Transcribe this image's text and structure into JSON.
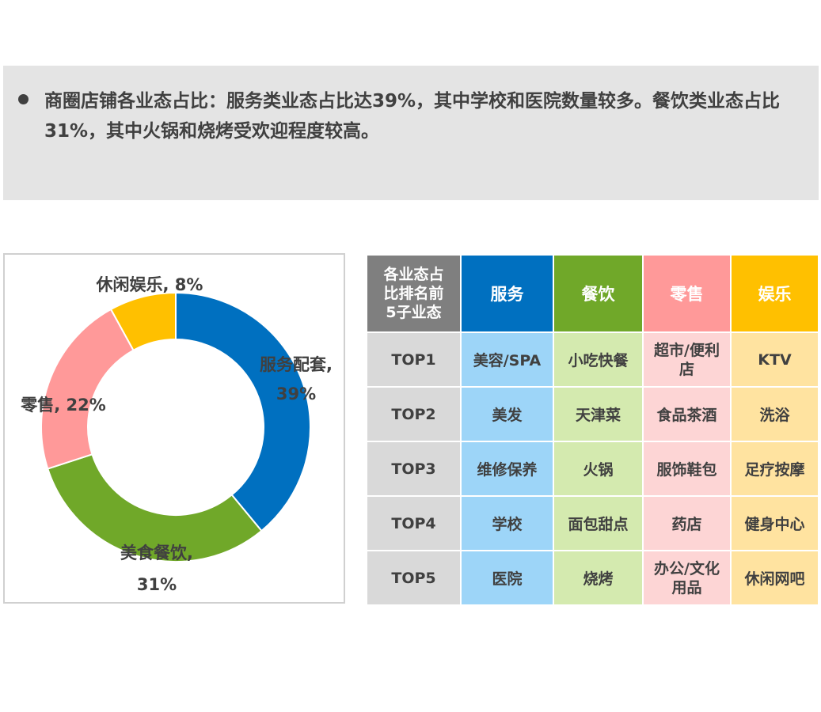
{
  "summary": {
    "text": "商圈店铺各业态占比：服务类业态占比达39%，其中学校和医院数量较多。餐饮类业态占比31%，其中火锅和烧烤受欢迎程度较高。"
  },
  "chart_data": {
    "type": "pie",
    "title": "",
    "donut": true,
    "start": "12 o'clock, clockwise",
    "categories": [
      "服务配套",
      "美食餐饮",
      "零售",
      "休闲娱乐"
    ],
    "values": [
      39,
      31,
      22,
      8
    ],
    "unit": "%",
    "colors": [
      "#0070c0",
      "#70a829",
      "#ff9999",
      "#ffc000"
    ],
    "labels": [
      {
        "lines": [
          "服务配套,",
          "39%"
        ]
      },
      {
        "lines": [
          "美食餐饮,",
          "31%"
        ]
      },
      {
        "lines": [
          "零售, 22%"
        ]
      },
      {
        "lines": [
          "休闲娱乐, 8%"
        ]
      }
    ]
  },
  "table": {
    "header_label": [
      "各业态占",
      "比排名前",
      "5子业态"
    ],
    "columns": [
      "服务",
      "餐饮",
      "零售",
      "娱乐"
    ],
    "header_colors": [
      "#0070c0",
      "#70a829",
      "#ff9999",
      "#ffc000"
    ],
    "rows": [
      {
        "rank": "TOP1",
        "cells": [
          "美容/SPA",
          "小吃快餐",
          "超市/便利店",
          "KTV"
        ]
      },
      {
        "rank": "TOP2",
        "cells": [
          "美发",
          "天津菜",
          "食品茶酒",
          "洗浴"
        ]
      },
      {
        "rank": "TOP3",
        "cells": [
          "维修保养",
          "火锅",
          "服饰鞋包",
          "足疗按摩"
        ]
      },
      {
        "rank": "TOP4",
        "cells": [
          "学校",
          "面包甜点",
          "药店",
          "健身中心"
        ]
      },
      {
        "rank": "TOP5",
        "cells": [
          "医院",
          "烧烤",
          "办公/文化用品",
          "休闲网吧"
        ]
      }
    ]
  }
}
